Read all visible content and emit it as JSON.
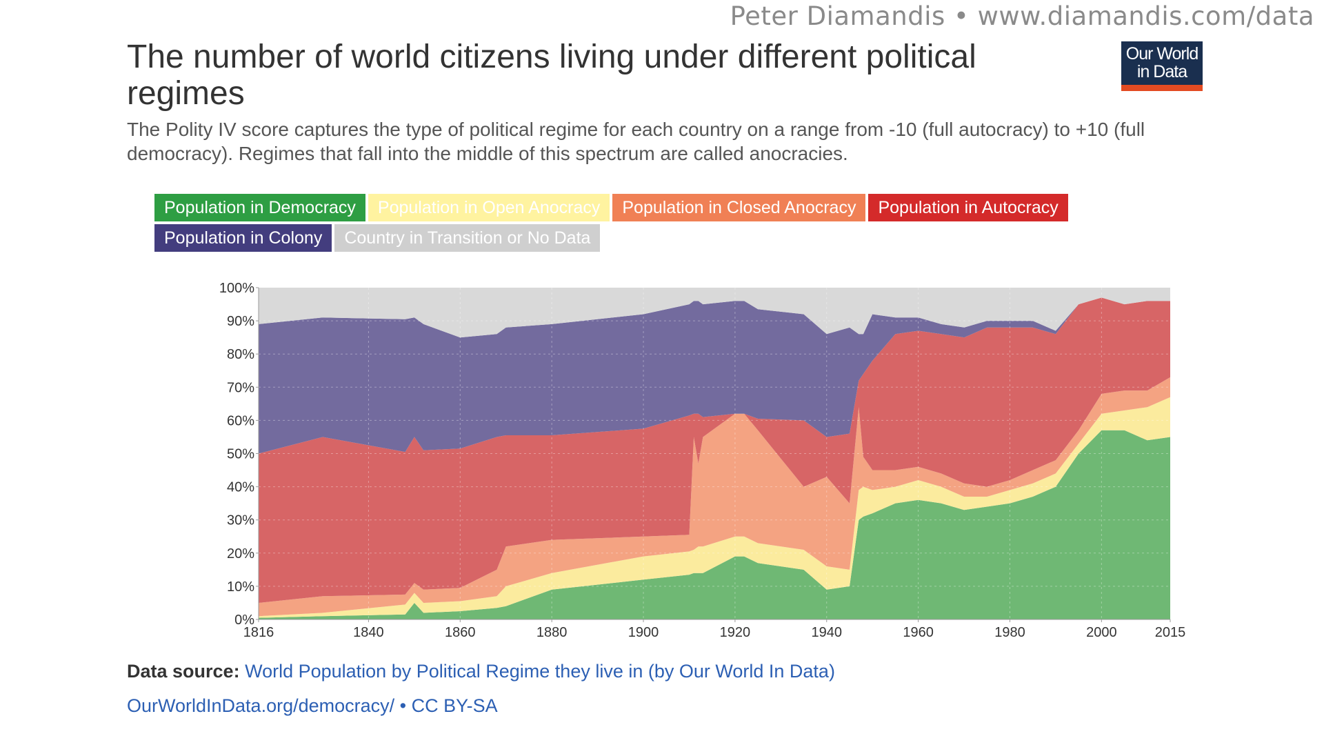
{
  "watermark": "Peter Diamandis  •  www.diamandis.com/data",
  "header": {
    "title": "The number of world citizens living under different political regimes",
    "subtitle": "The Polity IV score captures the type of political regime for each country on a range from -10 (full autocracy) to +10 (full democracy). Regimes that fall into the middle of this spectrum are called anocracies.",
    "logo_line1": "Our World",
    "logo_line2": "in Data"
  },
  "legend": [
    {
      "label": "Population in Democracy",
      "color": "#2e9e43",
      "text_color": "#ffffff"
    },
    {
      "label": "Population in Open Anocracy",
      "color": "#fff3a0",
      "text_color": "#ffffff"
    },
    {
      "label": "Population in Closed Anocracy",
      "color": "#f08055",
      "text_color": "#ffffff"
    },
    {
      "label": "Population in Autocracy",
      "color": "#d42a2a",
      "text_color": "#ffffff"
    },
    {
      "label": "Population in Colony",
      "color": "#433d7e",
      "text_color": "#ffffff"
    },
    {
      "label": "Country in Transition or No Data",
      "color": "#cfcfcf",
      "text_color": "#ffffff"
    }
  ],
  "chart_data": {
    "type": "area",
    "stacked": true,
    "ylim": [
      0,
      100
    ],
    "xlim": [
      1816,
      2015
    ],
    "x_ticks": [
      "1816",
      "1840",
      "1860",
      "1880",
      "1900",
      "1920",
      "1940",
      "1960",
      "1980",
      "2000",
      "2015"
    ],
    "y_ticks": [
      "0%",
      "10%",
      "20%",
      "30%",
      "40%",
      "50%",
      "60%",
      "70%",
      "80%",
      "90%",
      "100%"
    ],
    "x": [
      1816,
      1830,
      1848,
      1850,
      1852,
      1860,
      1868,
      1870,
      1880,
      1900,
      1910,
      1911,
      1912,
      1913,
      1920,
      1922,
      1925,
      1935,
      1940,
      1945,
      1947,
      1948,
      1950,
      1955,
      1960,
      1965,
      1970,
      1975,
      1980,
      1985,
      1990,
      1995,
      2000,
      2005,
      2010,
      2015
    ],
    "series": [
      {
        "name": "Population in Democracy",
        "color": "#6fb874",
        "values": [
          0.5,
          1,
          1.5,
          5,
          2,
          2.5,
          3.5,
          4,
          9,
          12,
          13.5,
          14,
          14,
          14,
          19,
          19,
          17,
          15,
          9,
          10,
          30,
          31,
          32,
          35,
          36,
          35,
          33,
          34,
          35,
          37,
          40,
          50,
          57,
          57,
          54,
          55
        ]
      },
      {
        "name": "Population in Open Anocracy",
        "color": "#fbeb9e",
        "values": [
          0.5,
          1,
          3,
          3,
          3,
          3,
          3.5,
          6,
          5,
          7,
          7,
          7,
          8,
          8,
          6,
          6,
          6,
          6,
          7,
          5,
          9,
          9,
          7,
          5,
          6,
          5,
          4,
          3,
          4,
          4,
          4,
          3,
          5,
          6,
          10,
          12
        ]
      },
      {
        "name": "Population in Closed Anocracy",
        "color": "#f4a382",
        "values": [
          4,
          5,
          3,
          3,
          4,
          4,
          8,
          12,
          10,
          6,
          5,
          34,
          25,
          33,
          37,
          37,
          34,
          19,
          27,
          20,
          25,
          9,
          6,
          5,
          4,
          4,
          4,
          3,
          3,
          4,
          4,
          4,
          6,
          6,
          5,
          6
        ]
      },
      {
        "name": "Population in Autocracy",
        "color": "#d76566",
        "values": [
          45,
          48,
          43,
          44,
          42,
          42,
          40,
          33.5,
          31.5,
          32.5,
          36,
          7,
          15,
          6,
          0,
          0,
          3.5,
          20,
          12,
          21,
          8,
          25,
          33,
          41,
          41,
          42,
          44,
          48,
          46,
          43,
          38,
          38,
          29,
          26,
          27,
          23
        ]
      },
      {
        "name": "Population in Colony",
        "color": "#736b9e",
        "values": [
          39,
          36,
          40,
          36,
          38,
          33.5,
          31,
          32.5,
          33.5,
          34.5,
          33.5,
          34,
          34,
          34,
          34,
          34,
          33,
          32,
          31,
          32,
          14,
          12,
          14,
          5,
          4,
          3,
          3,
          2,
          2,
          2,
          1,
          0,
          0,
          0,
          0,
          0
        ]
      },
      {
        "name": "Country in Transition or No Data",
        "color": "#d9d9d9",
        "values": [
          11,
          9,
          9.5,
          9,
          11,
          15,
          14,
          12,
          11,
          8,
          5,
          4,
          4,
          5,
          4,
          4,
          6.5,
          8,
          14,
          12,
          14,
          14,
          8,
          9,
          9,
          11,
          12,
          10,
          10,
          10,
          13,
          5,
          3,
          5,
          4,
          4
        ]
      }
    ]
  },
  "footer": {
    "source_label": "Data source:",
    "source_text": "World Population by Political Regime they live in (by Our World In Data)",
    "url": "OurWorldInData.org/democracy/",
    "license": " • CC BY-SA"
  }
}
